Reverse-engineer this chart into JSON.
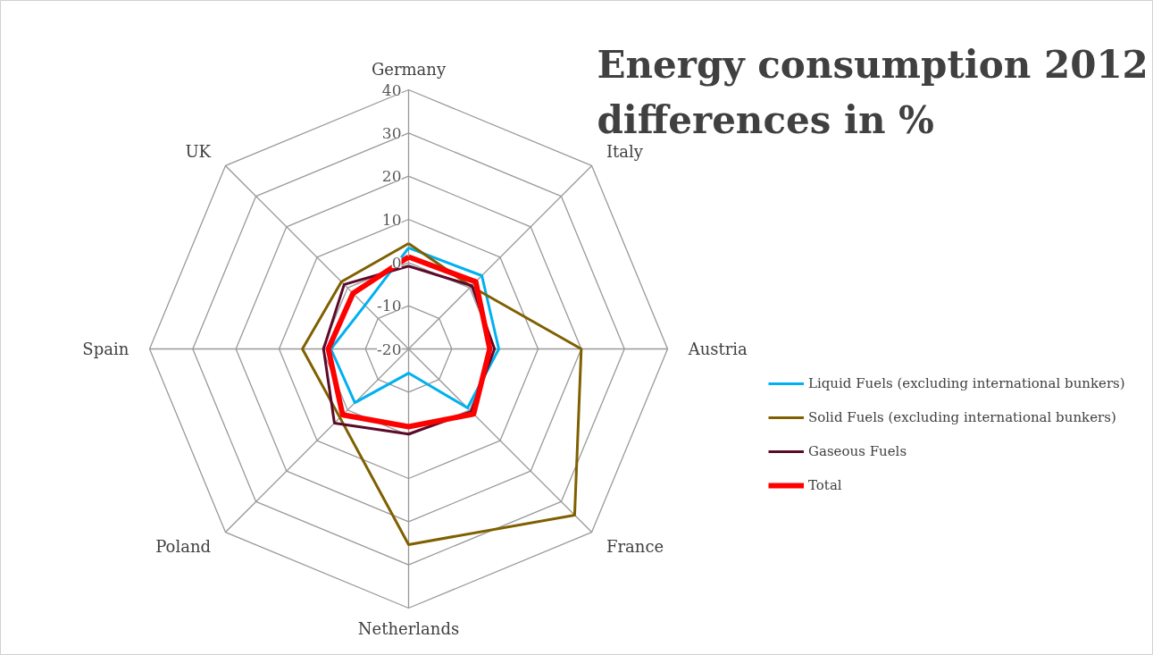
{
  "chart_data": {
    "type": "radar",
    "title": "Energy consumption 2012 differences in %",
    "categories": [
      "Germany",
      "Italy",
      "Austria",
      "France",
      "Netherlands",
      "Poland",
      "Spain",
      "UK"
    ],
    "ylim": [
      -20,
      40
    ],
    "yticks": [
      -20,
      -10,
      0,
      10,
      20,
      30,
      40
    ],
    "grid": true,
    "legend": "right",
    "series": [
      {
        "name": "Liquid Fuels (excluding international bunkers)",
        "color": "#00b0f0",
        "values": [
          3.4,
          4,
          0.9,
          -0.7,
          -14.4,
          -2.4,
          -2,
          -5.7
        ]
      },
      {
        "name": "Solid Fuels (excluding international bunkers)",
        "color": "#7f6000",
        "values": [
          4.4,
          0.5,
          20,
          34.4,
          25.3,
          2.5,
          4.6,
          2
        ]
      },
      {
        "name": "Gaseous Fuels",
        "color": "#5c0a2a",
        "values": [
          -0.8,
          0.7,
          -0.1,
          0.5,
          -0.3,
          4.3,
          -0.3,
          1.1
        ]
      },
      {
        "name": "Total",
        "color": "#ff0000",
        "values": [
          1.3,
          2,
          -1.2,
          1.3,
          -2,
          1.6,
          -1.4,
          -1.8
        ]
      }
    ]
  }
}
